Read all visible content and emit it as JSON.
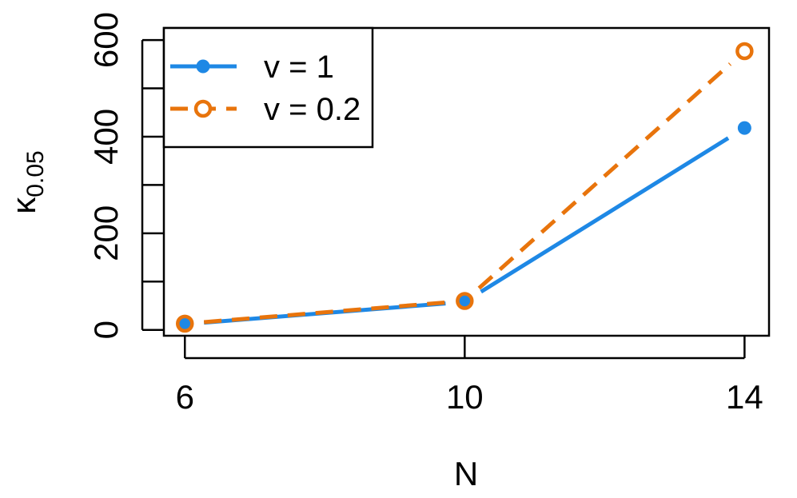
{
  "chart_data": {
    "type": "line",
    "xlabel": "N",
    "ylabel": {
      "base": "κ",
      "subscript": "0.05"
    },
    "x": [
      6,
      10,
      14
    ],
    "x_ticks": [
      "6",
      "10",
      "14"
    ],
    "y_ticks": [
      "0",
      "200",
      "400",
      "600"
    ],
    "y_tick_values": [
      0,
      100,
      200,
      300,
      400,
      500,
      600
    ],
    "xlim": [
      5.7,
      14.35
    ],
    "ylim": [
      -12,
      625
    ],
    "legend_position": "top-left",
    "series": [
      {
        "name": "v = 1",
        "values": [
          12,
          58,
          418
        ],
        "color": "#1E88E5",
        "line_style": "solid",
        "marker": "filled-circle"
      },
      {
        "name": "v = 0.2",
        "values": [
          13,
          60,
          577
        ],
        "color": "#E8740C",
        "line_style": "dashed",
        "marker": "open-circle"
      }
    ]
  }
}
